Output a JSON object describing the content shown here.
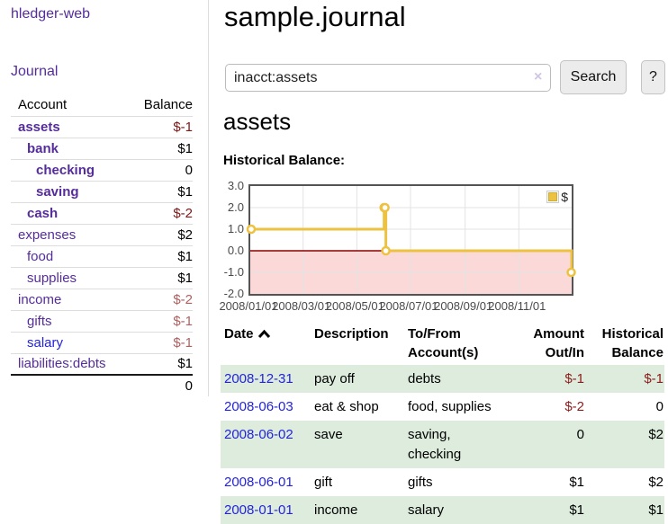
{
  "app": {
    "title": "hledger-web",
    "nav_journal": "Journal"
  },
  "sidebar": {
    "header": {
      "account": "Account",
      "balance": "Balance"
    },
    "accounts": [
      {
        "label": "assets",
        "value": "$-1",
        "level": 0,
        "bold": true,
        "link": "purple",
        "neg": "strong"
      },
      {
        "label": "bank",
        "value": "$1",
        "level": 1,
        "bold": true,
        "link": "purple",
        "neg": "none"
      },
      {
        "label": "checking",
        "value": "0",
        "level": 2,
        "bold": true,
        "link": "purple",
        "neg": "none"
      },
      {
        "label": "saving",
        "value": "$1",
        "level": 2,
        "bold": true,
        "link": "purple",
        "neg": "none"
      },
      {
        "label": "cash",
        "value": "$-2",
        "level": 1,
        "bold": true,
        "link": "purple",
        "neg": "strong"
      },
      {
        "label": "expenses",
        "value": "$2",
        "level": 0,
        "bold": false,
        "link": "purple",
        "neg": "none"
      },
      {
        "label": "food",
        "value": "$1",
        "level": 1,
        "bold": false,
        "link": "purple",
        "neg": "none"
      },
      {
        "label": "supplies",
        "value": "$1",
        "level": 1,
        "bold": false,
        "link": "purple",
        "neg": "none"
      },
      {
        "label": "income",
        "value": "$-2",
        "level": 0,
        "bold": false,
        "link": "purple",
        "neg": "soft"
      },
      {
        "label": "gifts",
        "value": "$-1",
        "level": 1,
        "bold": false,
        "link": "purple",
        "neg": "soft"
      },
      {
        "label": "salary",
        "value": "$-1",
        "level": 1,
        "bold": false,
        "link": "blue",
        "neg": "soft"
      },
      {
        "label": "liabilities:debts",
        "value": "$1",
        "level": 0,
        "bold": false,
        "link": "purple",
        "neg": "none"
      }
    ],
    "total": "0"
  },
  "main": {
    "title": "sample.journal",
    "search": {
      "value": "inacct:assets",
      "clear_icon": "×",
      "button_label": "Search",
      "help_label": "?"
    },
    "account_heading": "assets",
    "chart_heading": "Historical Balance:"
  },
  "chart_data": {
    "type": "line",
    "step": true,
    "title": "Historical Balance:",
    "series": [
      {
        "name": "$",
        "points": [
          [
            "2008-01-01",
            1
          ],
          [
            "2008-06-01",
            2
          ],
          [
            "2008-06-02",
            2
          ],
          [
            "2008-06-03",
            0
          ],
          [
            "2008-12-31",
            -1
          ]
        ]
      }
    ],
    "x_range": [
      "2008-01-01",
      "2008-12-31"
    ],
    "ylim": [
      -2,
      3
    ],
    "y_ticks": [
      "3.0",
      "2.0",
      "1.0",
      "0.0",
      "-1.0",
      "-2.0"
    ],
    "x_ticks": [
      "2008/01/01",
      "2008/03/01",
      "2008/05/01",
      "2008/07/01",
      "2008/09/01",
      "2008/11/01"
    ],
    "legend": {
      "label": "$",
      "position": "top-right"
    },
    "line_color": "#EDC240",
    "marker_fill": "#ffffff",
    "zero_line_color": "#8b0000",
    "negative_region_color": "#fbd9d9",
    "grid_color": "#e3e3e3"
  },
  "register": {
    "headers": {
      "date": "Date",
      "description": "Description",
      "accounts_line1": "To/From",
      "accounts_line2": "Account(s)",
      "amount_line1": "Amount",
      "amount_line2": "Out/In",
      "balance_line1": "Historical",
      "balance_line2": "Balance"
    },
    "rows": [
      {
        "date": "2008-12-31",
        "description": "pay off",
        "accounts": "debts",
        "amount": "$-1",
        "balance": "$-1"
      },
      {
        "date": "2008-06-03",
        "description": "eat & shop",
        "accounts": "food, supplies",
        "amount": "$-2",
        "balance": "0"
      },
      {
        "date": "2008-06-02",
        "description": "save",
        "accounts": "saving, checking",
        "amount": "0",
        "balance": "$2"
      },
      {
        "date": "2008-06-01",
        "description": "gift",
        "accounts": "gifts",
        "amount": "$1",
        "balance": "$2"
      },
      {
        "date": "2008-01-01",
        "description": "income",
        "accounts": "salary",
        "amount": "$1",
        "balance": "$1"
      }
    ]
  }
}
